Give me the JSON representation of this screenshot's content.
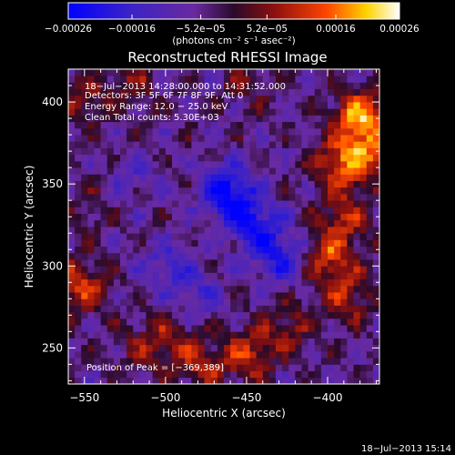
{
  "chart_data": {
    "type": "heatmap",
    "title": "Reconstructed RHESSI Image",
    "xlabel": "Heliocentric X (arcsec)",
    "ylabel": "Heliocentric Y (arcsec)",
    "xlim": [
      -560,
      -368
    ],
    "ylim": [
      228,
      420
    ],
    "x_ticks": [
      -550,
      -500,
      -450,
      -400
    ],
    "x_tick_labels": [
      "−550",
      "−500",
      "−450",
      "−400"
    ],
    "y_ticks": [
      250,
      300,
      350,
      400
    ],
    "y_tick_labels": [
      "250",
      "300",
      "350",
      "400"
    ],
    "colorbar": {
      "range": [
        -0.00026,
        0.00026
      ],
      "ticks": [
        -0.00026,
        -0.00016,
        -5.2e-05,
        5.2e-05,
        0.00016,
        0.00026
      ],
      "tick_labels": [
        "−0.00026",
        "−0.00016",
        "−5.2e−05",
        "5.2e−05",
        "0.00016",
        "0.00026"
      ],
      "units": "(photons cm⁻² s⁻¹ asec⁻²)",
      "colormap": [
        "#0000ff",
        "#4020c0",
        "#6a2aa0",
        "#2a0a2a",
        "#8a1010",
        "#ff4500",
        "#ffd200",
        "#ffffff"
      ]
    },
    "annotations": [
      "18−Jul−2013 14:28:00.000 to 14:31:52.000",
      "Detectors: 3F 5F 6F 7F 8F 9F, Att 0",
      "Energy Range: 12.0 − 25.0 keV",
      "Clean    Total counts: 5.30E+03"
    ],
    "peak_label": "Position of Peak = [−369,389]",
    "peak": [
      -369,
      389
    ],
    "sources": [
      {
        "x": -380,
        "y": 390,
        "v": 0.00024
      },
      {
        "x": -392,
        "y": 362,
        "v": 0.00018
      },
      {
        "x": -372,
        "y": 368,
        "v": 0.00014
      },
      {
        "x": -390,
        "y": 330,
        "v": 0.00013
      },
      {
        "x": -398,
        "y": 305,
        "v": 0.00016
      },
      {
        "x": -388,
        "y": 280,
        "v": 0.00012
      },
      {
        "x": -425,
        "y": 262,
        "v": 0.0001
      },
      {
        "x": -450,
        "y": 245,
        "v": 0.00015
      },
      {
        "x": -480,
        "y": 240,
        "v": 0.00012
      },
      {
        "x": -498,
        "y": 258,
        "v": 8e-05
      },
      {
        "x": -515,
        "y": 250,
        "v": 7e-05
      },
      {
        "x": -553,
        "y": 288,
        "v": 0.00017
      },
      {
        "x": -550,
        "y": 402,
        "v": 9e-05
      },
      {
        "x": -520,
        "y": 410,
        "v": 8e-05
      },
      {
        "x": -450,
        "y": 410,
        "v": 6e-05
      },
      {
        "x": -545,
        "y": 335,
        "v": 5e-05
      },
      {
        "x": -462,
        "y": 345,
        "v": -0.00022
      },
      {
        "x": -445,
        "y": 325,
        "v": -0.00017
      },
      {
        "x": -430,
        "y": 305,
        "v": -0.00015
      },
      {
        "x": -500,
        "y": 300,
        "v": -9e-05
      },
      {
        "x": -520,
        "y": 355,
        "v": -6e-05
      },
      {
        "x": -480,
        "y": 285,
        "v": -8e-05
      }
    ]
  },
  "footer": {
    "timestamp": "18−Jul−2013 15:14"
  }
}
